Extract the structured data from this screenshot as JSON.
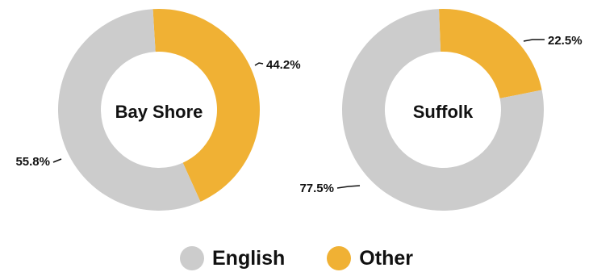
{
  "chart_data": [
    {
      "type": "pie",
      "title": "Bay Shore",
      "categories": [
        "English",
        "Other"
      ],
      "values": [
        55.8,
        44.2
      ],
      "labels": [
        "55.8%",
        "44.2%"
      ],
      "colors": [
        "#cccccc",
        "#f0b134"
      ]
    },
    {
      "type": "pie",
      "title": "Suffolk",
      "categories": [
        "English",
        "Other"
      ],
      "values": [
        77.5,
        22.5
      ],
      "labels": [
        "77.5%",
        "22.5%"
      ],
      "colors": [
        "#cccccc",
        "#f0b134"
      ]
    }
  ],
  "legend": {
    "placement": "bottom-center",
    "items": [
      {
        "label": "English",
        "color": "#cccccc"
      },
      {
        "label": "Other",
        "color": "#f0b134"
      }
    ]
  }
}
